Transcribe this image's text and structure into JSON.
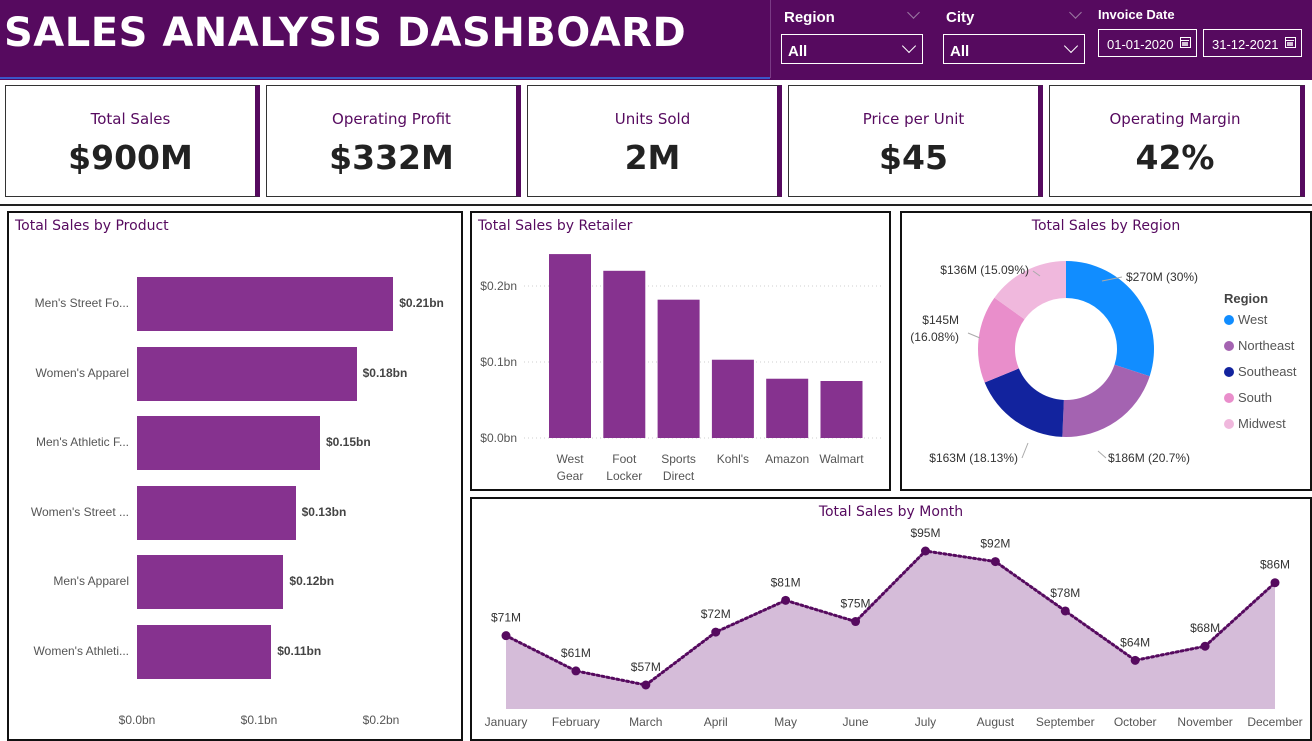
{
  "header": {
    "title": "SALES ANALYSIS DASHBOARD",
    "slicers": {
      "region": {
        "label": "Region",
        "value": "All"
      },
      "city": {
        "label": "City",
        "value": "All"
      },
      "invoice_date": {
        "label": "Invoice Date",
        "start": "01-01-2020",
        "end": "31-12-2021"
      }
    }
  },
  "kpis": [
    {
      "label": "Total Sales",
      "value": "$900M"
    },
    {
      "label": "Operating Profit",
      "value": "$332M"
    },
    {
      "label": "Units Sold",
      "value": "2M"
    },
    {
      "label": "Price per Unit",
      "value": "$45"
    },
    {
      "label": "Operating Margin",
      "value": "42%"
    }
  ],
  "colors": {
    "brand": "#560a5f",
    "bar": "#86328f",
    "area": "#d5bcd9",
    "line": "#560a5f",
    "West": "#118dff",
    "Northeast": "#a463b1",
    "Southeast": "#12239e",
    "South": "#e98ecb",
    "Midwest": "#f0b8dd"
  },
  "chart_data": [
    {
      "id": "product",
      "type": "bar",
      "orientation": "horizontal",
      "title": "Total Sales by Product",
      "categories": [
        "Men's Street Fo...",
        "Women's Apparel",
        "Men's Athletic F...",
        "Women's Street ...",
        "Men's Apparel",
        "Women's Athleti..."
      ],
      "values": [
        0.21,
        0.18,
        0.15,
        0.13,
        0.12,
        0.11
      ],
      "value_labels": [
        "$0.21bn",
        "$0.18bn",
        "$0.15bn",
        "$0.13bn",
        "$0.12bn",
        "$0.11bn"
      ],
      "xticks": [
        "$0.0bn",
        "$0.1bn",
        "$0.2bn"
      ],
      "xlim": [
        0,
        0.22
      ],
      "unit": "bn"
    },
    {
      "id": "retailer",
      "type": "bar",
      "title": "Total Sales by Retailer",
      "categories": [
        [
          "West",
          "Gear"
        ],
        [
          "Foot",
          "Locker"
        ],
        [
          "Sports",
          "Direct"
        ],
        [
          "Kohl's"
        ],
        [
          "Amazon"
        ],
        [
          "Walmart"
        ]
      ],
      "values": [
        0.242,
        0.22,
        0.182,
        0.103,
        0.078,
        0.075
      ],
      "yticks": [
        "$0.0bn",
        "$0.1bn",
        "$0.2bn"
      ],
      "ylim": [
        0,
        0.25
      ],
      "grid": true
    },
    {
      "id": "region",
      "type": "pie",
      "variant": "donut",
      "title": "Total Sales by Region",
      "legend_title": "Region",
      "categories": [
        "West",
        "Northeast",
        "Southeast",
        "South",
        "Midwest"
      ],
      "values": [
        270,
        186,
        163,
        145,
        136
      ],
      "percent": [
        30,
        20.7,
        18.13,
        16.08,
        15.09
      ],
      "labels": [
        "$270M (30%)",
        "$186M (20.7%)",
        "$163M (18.13%)",
        "$145M",
        "$136M (15.09%)"
      ],
      "labels_line2": [
        "",
        "",
        "",
        "(16.08%)",
        ""
      ],
      "legend_placement": "right"
    },
    {
      "id": "month",
      "type": "area",
      "title": "Total Sales by Month",
      "categories": [
        "January",
        "February",
        "March",
        "April",
        "May",
        "June",
        "July",
        "August",
        "September",
        "October",
        "November",
        "December"
      ],
      "values": [
        71,
        61,
        57,
        72,
        81,
        75,
        95,
        92,
        78,
        64,
        68,
        86
      ],
      "value_labels": [
        "$71M",
        "$61M",
        "$57M",
        "$72M",
        "$81M",
        "$75M",
        "$95M",
        "$92M",
        "$78M",
        "$64M",
        "$68M",
        "$86M"
      ],
      "unit": "M"
    }
  ]
}
